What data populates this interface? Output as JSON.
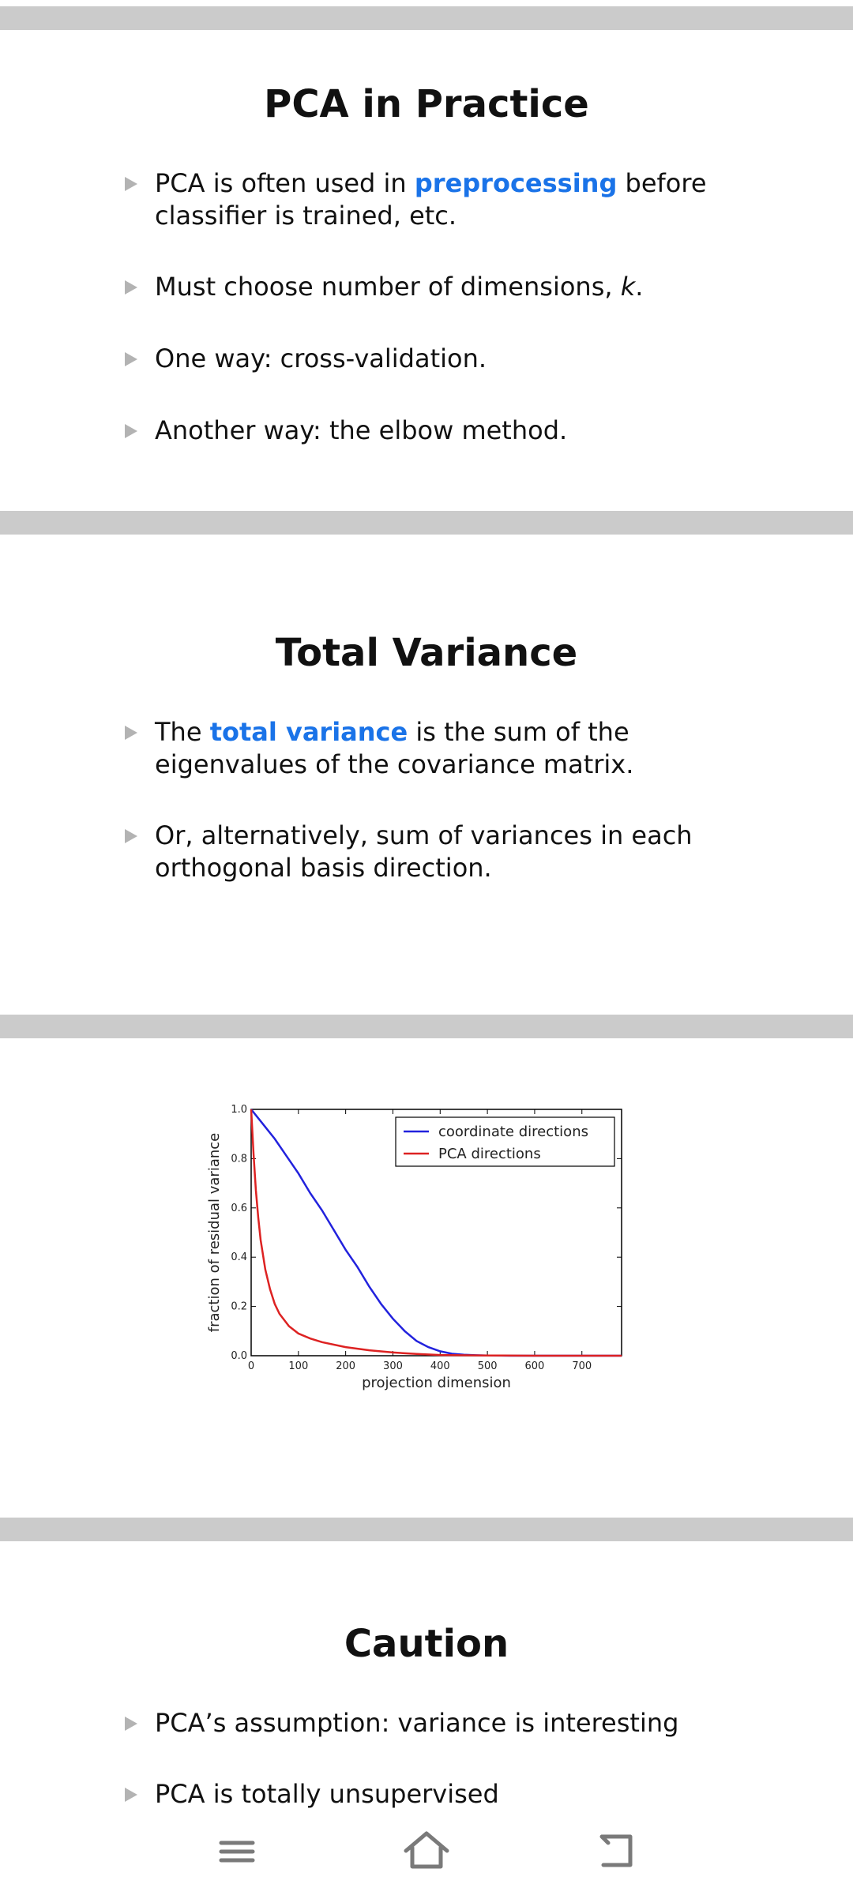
{
  "slides": [
    {
      "title": "PCA in Practice",
      "bullets": [
        {
          "before": "PCA is often used in ",
          "highlight": "preprocessing",
          "after": " before classifier is trained, etc."
        },
        {
          "before": "Must choose number of dimensions, ",
          "italic": "k",
          "after": "."
        },
        {
          "text": "One way: cross-validation."
        },
        {
          "text": "Another way: the elbow method."
        }
      ]
    },
    {
      "title": "Total Variance",
      "bullets": [
        {
          "before": "The ",
          "highlight": "total variance",
          "after": " is the sum of the eigenvalues of the covariance matrix."
        },
        {
          "text": "Or, alternatively, sum of variances in each orthogonal basis direction."
        }
      ]
    },
    {
      "title": "Caution",
      "bullets": [
        {
          "text": "PCA’s assumption: variance is interesting"
        },
        {
          "text": "PCA is totally unsupervised"
        }
      ]
    }
  ],
  "accent_color": "#1a73e8",
  "chart_data": {
    "type": "line",
    "xlabel": "projection dimension",
    "ylabel": "fraction of residual variance",
    "xlim": [
      0,
      784
    ],
    "ylim": [
      0,
      1.0
    ],
    "xticks": [
      0,
      100,
      200,
      300,
      400,
      500,
      600,
      700
    ],
    "yticks": [
      0.0,
      0.2,
      0.4,
      0.6,
      0.8,
      1.0
    ],
    "legend_position": "top-right",
    "series": [
      {
        "name": "coordinate directions",
        "color": "#2222dd",
        "x": [
          0,
          25,
          50,
          75,
          100,
          125,
          150,
          175,
          200,
          225,
          250,
          275,
          300,
          325,
          350,
          375,
          400,
          425,
          450,
          475,
          500,
          550,
          600,
          650,
          700,
          784
        ],
        "y": [
          1.0,
          0.94,
          0.88,
          0.81,
          0.74,
          0.66,
          0.59,
          0.51,
          0.43,
          0.36,
          0.28,
          0.21,
          0.15,
          0.1,
          0.06,
          0.035,
          0.018,
          0.008,
          0.004,
          0.002,
          0.001,
          0.0,
          0.0,
          0.0,
          0.0,
          0.0
        ]
      },
      {
        "name": "PCA directions",
        "color": "#dd2222",
        "x": [
          0,
          5,
          10,
          15,
          20,
          30,
          40,
          50,
          60,
          80,
          100,
          125,
          150,
          200,
          250,
          300,
          350,
          400,
          500,
          600,
          700,
          784
        ],
        "y": [
          1.0,
          0.82,
          0.67,
          0.56,
          0.47,
          0.35,
          0.27,
          0.21,
          0.17,
          0.12,
          0.09,
          0.07,
          0.055,
          0.035,
          0.022,
          0.013,
          0.007,
          0.003,
          0.001,
          0.0,
          0.0,
          0.0
        ]
      }
    ]
  },
  "nav": {
    "menu_icon": "menu-icon",
    "home_icon": "home-icon",
    "back_icon": "back-icon"
  }
}
